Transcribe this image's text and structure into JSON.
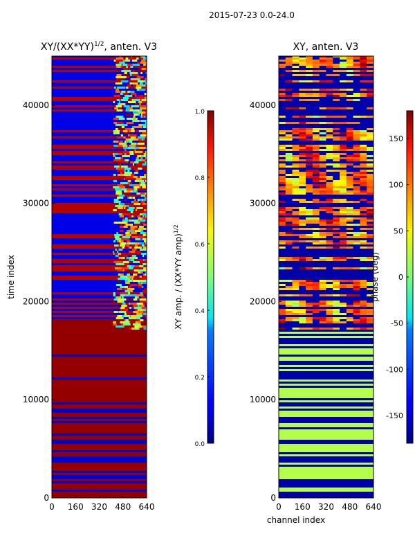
{
  "figure": {
    "suptitle": "2015-07-23 0.0-24.0"
  },
  "chart_data": [
    {
      "type": "heatmap",
      "title": "XY/(XX*YY)^{1/2}, anten. V3",
      "title_main": "XY/(XX*YY)",
      "title_exp": "1/2",
      "title_suffix": ", anten. V3",
      "xlabel": "",
      "ylabel": "time index",
      "xlim": [
        0,
        640
      ],
      "ylim": [
        0,
        45000
      ],
      "xticks": [
        "0",
        "160",
        "320",
        "480",
        "640"
      ],
      "yticks": [
        "0",
        "10000",
        "20000",
        "30000",
        "40000"
      ],
      "colorbar": {
        "label": "XY amp. / (XX*YY amp)^{1/2}",
        "label_main": "XY amp. / (XX*YY amp)",
        "label_exp": "1/2",
        "range": [
          0.0,
          1.0
        ],
        "ticks": [
          "0.0",
          "0.2",
          "0.4",
          "0.6",
          "0.8",
          "1.0"
        ],
        "colormap": "jet"
      }
    },
    {
      "type": "heatmap",
      "title": "XY, anten. V3",
      "xlabel": "channel index",
      "ylabel": "",
      "xlim": [
        0,
        640
      ],
      "ylim": [
        0,
        45000
      ],
      "xticks": [
        "0",
        "160",
        "320",
        "480",
        "640"
      ],
      "yticks": [
        "0",
        "10000",
        "20000",
        "30000",
        "40000"
      ],
      "colorbar": {
        "label": "phase (deg)",
        "range": [
          -180,
          180
        ],
        "ticks": [
          "-150",
          "-100",
          "-50",
          "0",
          "50",
          "100",
          "150"
        ],
        "colormap": "jet"
      }
    }
  ]
}
